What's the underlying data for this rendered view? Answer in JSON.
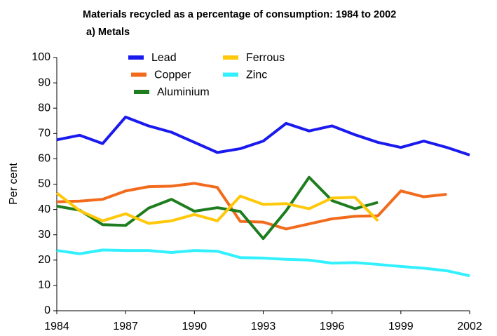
{
  "chart_data": {
    "type": "line",
    "title": "Materials recycled as a percentage of consumption: 1984 to 2002",
    "subtitle": "a) Metals",
    "y_label": "Per cent",
    "x": [
      1984,
      1985,
      1986,
      1987,
      1988,
      1989,
      1990,
      1991,
      1992,
      1993,
      1994,
      1995,
      1996,
      1997,
      1998,
      1999,
      2000,
      2001,
      2002
    ],
    "series": [
      {
        "name": "Lead",
        "color": "#1a1aef",
        "values": [
          67.5,
          69.3,
          66,
          76.5,
          73,
          70.5,
          66.5,
          62.5,
          64,
          67,
          74,
          71,
          73,
          69.5,
          66.5,
          64.5,
          67,
          64.5,
          61.5
        ]
      },
      {
        "name": "Copper",
        "color": "#f26b1d",
        "values": [
          43,
          43.3,
          44,
          47.3,
          49,
          49.2,
          50.3,
          48.7,
          35.3,
          35,
          32.3,
          34.3,
          36.3,
          37.3,
          37.5,
          47.3,
          45,
          46,
          null
        ]
      },
      {
        "name": "Aluminium",
        "color": "#1e7d1e",
        "values": [
          41.3,
          39.7,
          34,
          33.7,
          40.5,
          44,
          39.3,
          40.7,
          39.2,
          28.5,
          39.5,
          52.7,
          43.5,
          40.3,
          42.8,
          null,
          null,
          null,
          null
        ]
      },
      {
        "name": "Ferrous",
        "color": "#ffc80a",
        "values": [
          46.5,
          39.5,
          35.5,
          38.3,
          34.5,
          35.5,
          38,
          35.5,
          45.3,
          42,
          42.3,
          40.3,
          44.5,
          44.8,
          35.5,
          null,
          null,
          null,
          null
        ]
      },
      {
        "name": "Zinc",
        "color": "#33f0ff",
        "values": [
          23.8,
          22.5,
          24,
          23.8,
          23.8,
          23,
          23.8,
          23.5,
          21,
          20.8,
          20.3,
          20,
          18.8,
          19,
          18.3,
          17.5,
          16.8,
          15.8,
          13.8
        ]
      }
    ],
    "xlim": [
      1984,
      2002
    ],
    "xticks": [
      1984,
      1987,
      1990,
      1993,
      1996,
      1999,
      2002
    ],
    "ylim": [
      0,
      100
    ],
    "yticks": [
      0,
      10,
      20,
      30,
      40,
      50,
      60,
      70,
      80,
      90,
      100
    ],
    "grid": false,
    "legend": "top"
  }
}
